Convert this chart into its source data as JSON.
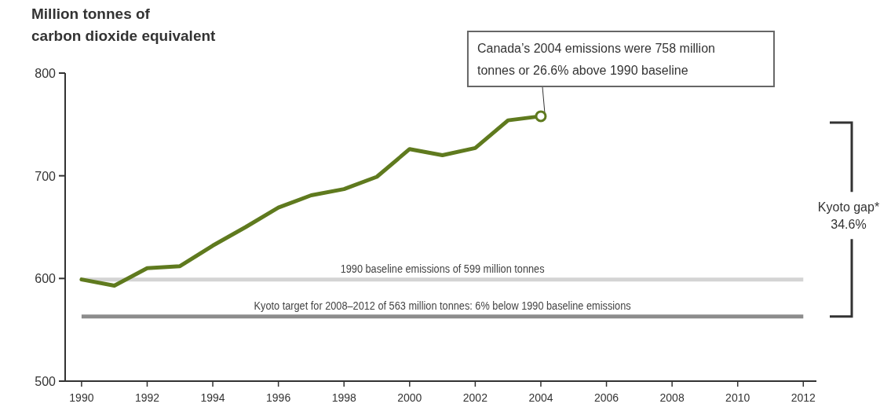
{
  "chart_data": {
    "type": "line",
    "ylabel": "Million tonnes of\ncarbon dioxide equivalent",
    "x": [
      1990,
      1991,
      1992,
      1993,
      1994,
      1995,
      1996,
      1997,
      1998,
      1999,
      2000,
      2001,
      2002,
      2003,
      2004
    ],
    "series": [
      {
        "color": "#5f7a1e",
        "values": [
          599,
          593,
          610,
          612,
          632,
          650,
          669,
          681,
          687,
          699,
          726,
          720,
          727,
          754,
          758
        ]
      }
    ],
    "xlim": [
      1989.5,
      2012.4
    ],
    "ylim": [
      500,
      800
    ],
    "xticks": [
      1990,
      1992,
      1994,
      1996,
      1998,
      2000,
      2002,
      2004,
      2006,
      2008,
      2010,
      2012
    ],
    "yticks": [
      500,
      600,
      700,
      800
    ],
    "ref_lines": [
      {
        "axis": "y",
        "value": 599,
        "label": "1990 baseline emissions of 599 million tonnes",
        "color": "#d4d4d4"
      },
      {
        "axis": "y",
        "value": 563,
        "label": "Kyoto target for 2008–2012 of 563 million tonnes: 6% below 1990 baseline emissions",
        "color": "#8c8c8c"
      }
    ],
    "annotations": [
      {
        "text": "Canada’s 2004 emissions were 758 million\ntonnes or 26.6% above 1990 baseline",
        "x": 2004,
        "y": 758
      },
      "Kyoto gap*\n34.6%"
    ],
    "grid": false,
    "marker": "none",
    "line_style": "solid"
  }
}
